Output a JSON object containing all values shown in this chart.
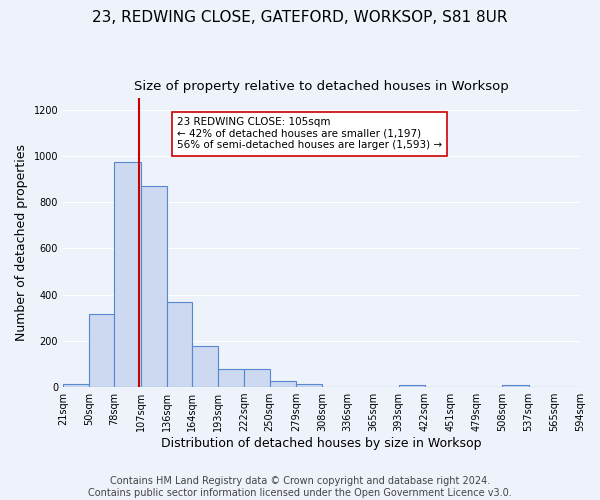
{
  "title1": "23, REDWING CLOSE, GATEFORD, WORKSOP, S81 8UR",
  "title2": "Size of property relative to detached houses in Worksop",
  "xlabel": "Distribution of detached houses by size in Worksop",
  "ylabel": "Number of detached properties",
  "footer": "Contains HM Land Registry data © Crown copyright and database right 2024.\nContains public sector information licensed under the Open Government Licence v3.0.",
  "bin_edges": [
    21,
    50,
    78,
    107,
    136,
    164,
    193,
    222,
    250,
    279,
    308,
    336,
    365,
    393,
    422,
    451,
    479,
    508,
    537,
    565,
    594
  ],
  "bar_heights": [
    15,
    315,
    975,
    870,
    370,
    180,
    80,
    80,
    25,
    15,
    0,
    0,
    0,
    10,
    0,
    0,
    0,
    10,
    0,
    0
  ],
  "bar_color": "#ccd9f0",
  "bar_edge_color": "#5588cc",
  "red_line_x": 105,
  "red_line_color": "#cc0000",
  "annotation_line1": "23 REDWING CLOSE: 105sqm",
  "annotation_line2": "← 42% of detached houses are smaller (1,197)",
  "annotation_line3": "56% of semi-detached houses are larger (1,593) →",
  "annotation_box_color": "#ffffff",
  "annotation_box_edge_color": "#cc0000",
  "ylim": [
    0,
    1250
  ],
  "yticks": [
    0,
    200,
    400,
    600,
    800,
    1000,
    1200
  ],
  "background_color": "#eef2fb",
  "grid_color": "#ffffff",
  "title1_fontsize": 11,
  "title2_fontsize": 9.5,
  "xlabel_fontsize": 9,
  "ylabel_fontsize": 9,
  "tick_fontsize": 7,
  "footer_fontsize": 7,
  "annotation_fontsize": 7.5
}
